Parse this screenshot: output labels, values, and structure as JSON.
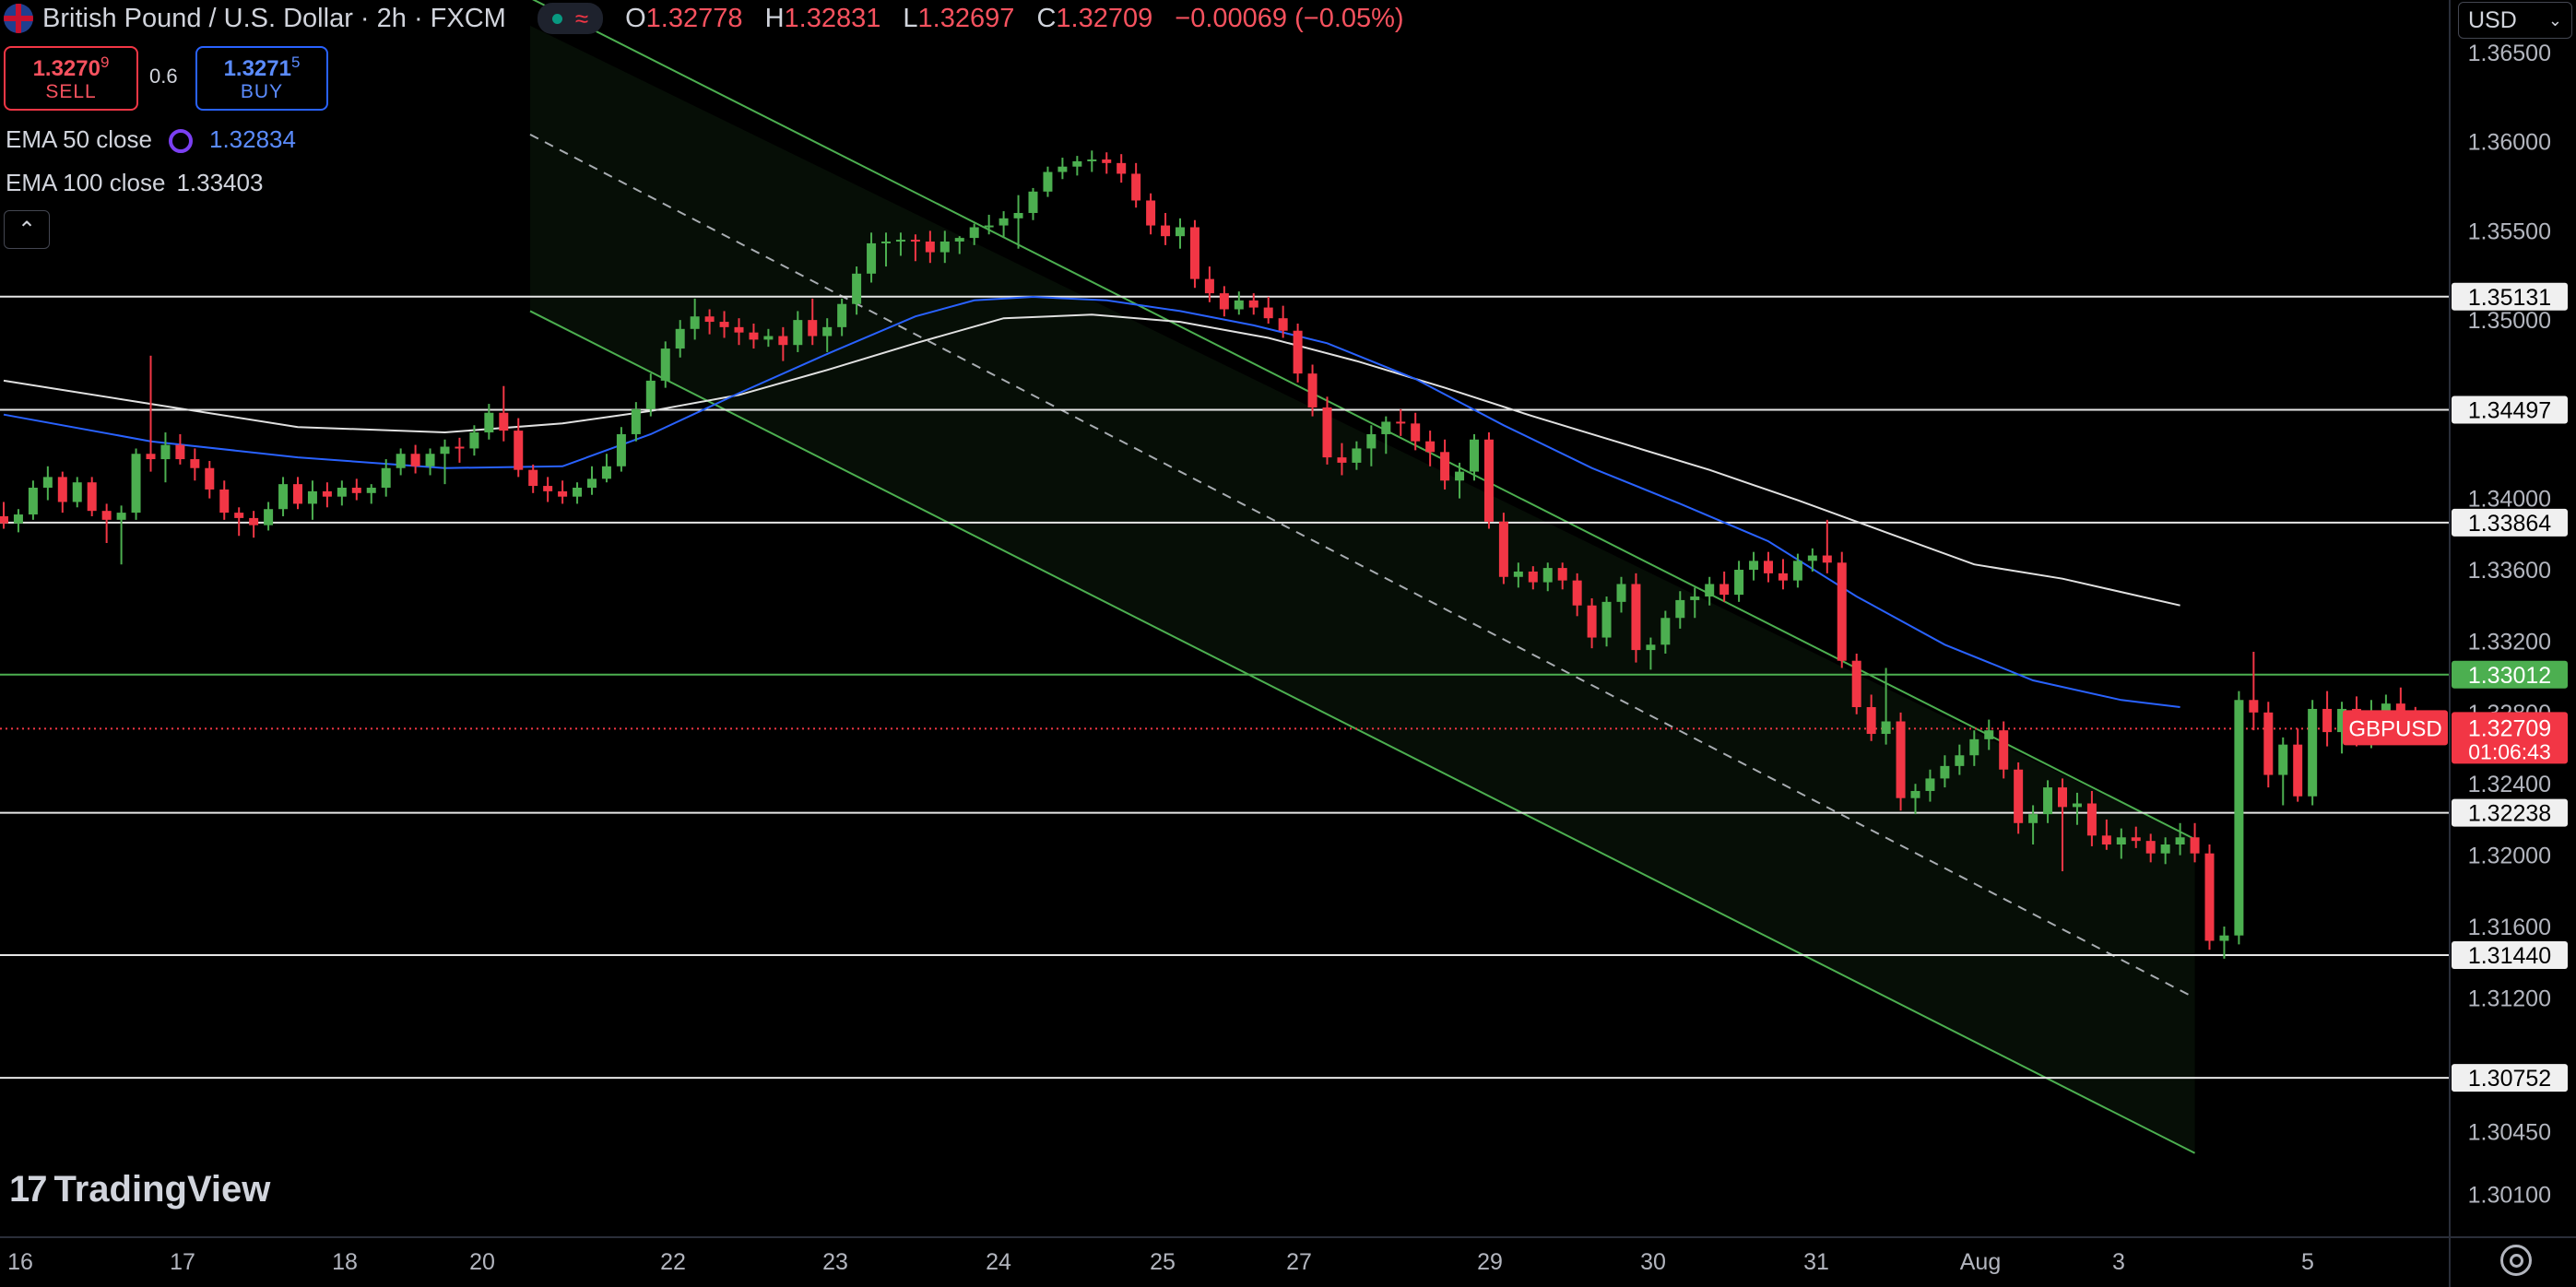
{
  "header": {
    "symbol_title": "British Pound / U.S. Dollar · 2h · FXCM",
    "ohlc": [
      {
        "key": "O",
        "value": "1.32778"
      },
      {
        "key": "H",
        "value": "1.32831"
      },
      {
        "key": "L",
        "value": "1.32697"
      },
      {
        "key": "C",
        "value": "1.32709"
      }
    ],
    "change": "−0.00069 (−0.05%)",
    "wave_icon": "≈"
  },
  "trade": {
    "sell_price_main": "1.3270",
    "sell_price_sup": "9",
    "sell_label": "SELL",
    "spread": "0.6",
    "buy_price_main": "1.3271",
    "buy_price_sup": "5",
    "buy_label": "BUY"
  },
  "indicators": {
    "ema50_label": "EMA 50 close",
    "ema50_value": "1.32834",
    "ema100_label": "EMA 100 close",
    "ema100_value": "1.33403"
  },
  "currency_selector": "USD",
  "brand": "TradingView",
  "colors": {
    "up": "#4caf50",
    "down": "#f23645",
    "ema50": "#2962ff",
    "ema100": "#e0e0e0",
    "channel": "#4caf50",
    "price_label_bg": "#f23645",
    "green_level_bg": "#4caf50"
  },
  "chart_data": {
    "type": "candlestick",
    "symbol_label": "GBPUSD",
    "current_price": "1.32709",
    "countdown": "01:06:43",
    "x_ticks": [
      "16",
      "17",
      "18",
      "20",
      "22",
      "23",
      "24",
      "25",
      "27",
      "29",
      "30",
      "31",
      "Aug",
      "3",
      "5"
    ],
    "y_ticks": [
      "1.36500",
      "1.36000",
      "1.35500",
      "1.35000",
      "1.34000",
      "1.33600",
      "1.33200",
      "1.32800",
      "1.32400",
      "1.32000",
      "1.31600",
      "1.31200",
      "1.30450",
      "1.30100"
    ],
    "y_range": [
      1.2985,
      1.367
    ],
    "horizontal_levels": [
      {
        "label": "1.35131",
        "value": 1.35131,
        "highlight": false
      },
      {
        "label": "1.34497",
        "value": 1.34497,
        "highlight": false
      },
      {
        "label": "1.33864",
        "value": 1.33864,
        "highlight": false
      },
      {
        "label": "1.33012",
        "value": 1.33012,
        "highlight": true
      },
      {
        "label": "1.32238",
        "value": 1.32238,
        "highlight": false
      },
      {
        "label": "1.31440",
        "value": 1.3144,
        "highlight": false
      },
      {
        "label": "1.30752",
        "value": 1.30752,
        "highlight": false
      }
    ],
    "channel": {
      "start_time": 35.8,
      "end_time": 149,
      "upper_start": 1.3665,
      "upper_end": 1.3209,
      "middle_start": 1.3604,
      "middle_end": 1.312,
      "lower_start": 1.3505,
      "lower_end": 1.3033
    },
    "candles": [
      [
        1.339,
        1.3398,
        1.3383,
        1.3386
      ],
      [
        1.3386,
        1.3394,
        1.3381,
        1.3391
      ],
      [
        1.3391,
        1.341,
        1.3388,
        1.3406
      ],
      [
        1.3406,
        1.3418,
        1.3399,
        1.3412
      ],
      [
        1.3412,
        1.3415,
        1.3392,
        1.3398
      ],
      [
        1.3398,
        1.3412,
        1.3395,
        1.3409
      ],
      [
        1.3409,
        1.3412,
        1.339,
        1.3393
      ],
      [
        1.3393,
        1.3397,
        1.3375,
        1.3388
      ],
      [
        1.3388,
        1.3396,
        1.3363,
        1.3392
      ],
      [
        1.3392,
        1.3428,
        1.3388,
        1.3425
      ],
      [
        1.3425,
        1.348,
        1.3415,
        1.3422
      ],
      [
        1.3422,
        1.3437,
        1.3409,
        1.343
      ],
      [
        1.343,
        1.3436,
        1.3419,
        1.3422
      ],
      [
        1.3422,
        1.3428,
        1.341,
        1.3417
      ],
      [
        1.3417,
        1.3421,
        1.34,
        1.3405
      ],
      [
        1.3405,
        1.341,
        1.3388,
        1.3392
      ],
      [
        1.3392,
        1.3395,
        1.3379,
        1.3389
      ],
      [
        1.3389,
        1.3393,
        1.3378,
        1.3385
      ],
      [
        1.3385,
        1.3398,
        1.3382,
        1.3394
      ],
      [
        1.3394,
        1.3412,
        1.339,
        1.3408
      ],
      [
        1.3408,
        1.3412,
        1.3394,
        1.3397
      ],
      [
        1.3397,
        1.341,
        1.3388,
        1.3404
      ],
      [
        1.3404,
        1.3409,
        1.3395,
        1.3401
      ],
      [
        1.3401,
        1.341,
        1.3396,
        1.3406
      ],
      [
        1.3406,
        1.3411,
        1.3399,
        1.3403
      ],
      [
        1.3403,
        1.3408,
        1.3397,
        1.3406
      ],
      [
        1.3406,
        1.3422,
        1.3401,
        1.3417
      ],
      [
        1.3417,
        1.3428,
        1.3413,
        1.3425
      ],
      [
        1.3425,
        1.343,
        1.3414,
        1.3418
      ],
      [
        1.3418,
        1.3428,
        1.3413,
        1.3425
      ],
      [
        1.3425,
        1.3433,
        1.3408,
        1.3429
      ],
      [
        1.3429,
        1.3434,
        1.342,
        1.3428
      ],
      [
        1.3428,
        1.3441,
        1.3424,
        1.3437
      ],
      [
        1.3437,
        1.3453,
        1.3433,
        1.3448
      ],
      [
        1.3448,
        1.3463,
        1.3432,
        1.3438
      ],
      [
        1.3438,
        1.3445,
        1.3412,
        1.3416
      ],
      [
        1.3416,
        1.3419,
        1.3403,
        1.3407
      ],
      [
        1.3407,
        1.3412,
        1.3398,
        1.3404
      ],
      [
        1.3404,
        1.341,
        1.3397,
        1.3401
      ],
      [
        1.3401,
        1.3409,
        1.3397,
        1.3406
      ],
      [
        1.3406,
        1.3418,
        1.3402,
        1.3411
      ],
      [
        1.3411,
        1.3425,
        1.3409,
        1.3418
      ],
      [
        1.3418,
        1.344,
        1.3415,
        1.3436
      ],
      [
        1.3436,
        1.3454,
        1.3432,
        1.345
      ],
      [
        1.345,
        1.347,
        1.3446,
        1.3466
      ],
      [
        1.3466,
        1.3488,
        1.3462,
        1.3484
      ],
      [
        1.3484,
        1.35,
        1.3479,
        1.3495
      ],
      [
        1.3495,
        1.3512,
        1.3489,
        1.3502
      ],
      [
        1.3502,
        1.3506,
        1.3492,
        1.3499
      ],
      [
        1.3499,
        1.3505,
        1.349,
        1.3496
      ],
      [
        1.3496,
        1.3501,
        1.3486,
        1.3493
      ],
      [
        1.3493,
        1.3498,
        1.3484,
        1.3489
      ],
      [
        1.3489,
        1.3495,
        1.3485,
        1.3491
      ],
      [
        1.3491,
        1.3496,
        1.3477,
        1.3486
      ],
      [
        1.3486,
        1.3505,
        1.3482,
        1.35
      ],
      [
        1.35,
        1.3512,
        1.3486,
        1.3491
      ],
      [
        1.3491,
        1.3501,
        1.3482,
        1.3496
      ],
      [
        1.3496,
        1.3512,
        1.3491,
        1.3509
      ],
      [
        1.3509,
        1.353,
        1.3503,
        1.3526
      ],
      [
        1.3526,
        1.3549,
        1.3521,
        1.3543
      ],
      [
        1.3543,
        1.3549,
        1.353,
        1.3544
      ],
      [
        1.3544,
        1.3549,
        1.3536,
        1.3545
      ],
      [
        1.3545,
        1.3548,
        1.3533,
        1.3544
      ],
      [
        1.3544,
        1.355,
        1.3532,
        1.3538
      ],
      [
        1.3538,
        1.355,
        1.3532,
        1.3544
      ],
      [
        1.3544,
        1.3547,
        1.3537,
        1.3546
      ],
      [
        1.3546,
        1.3554,
        1.3542,
        1.3552
      ],
      [
        1.3552,
        1.3559,
        1.3548,
        1.3553
      ],
      [
        1.3553,
        1.3561,
        1.3546,
        1.3557
      ],
      [
        1.3557,
        1.357,
        1.354,
        1.356
      ],
      [
        1.356,
        1.3574,
        1.3556,
        1.3572
      ],
      [
        1.3572,
        1.3586,
        1.3569,
        1.3583
      ],
      [
        1.3583,
        1.3591,
        1.3579,
        1.3586
      ],
      [
        1.3586,
        1.3592,
        1.3581,
        1.3589
      ],
      [
        1.3589,
        1.3595,
        1.3583,
        1.359
      ],
      [
        1.359,
        1.3594,
        1.3582,
        1.3588
      ],
      [
        1.3588,
        1.3593,
        1.3577,
        1.3582
      ],
      [
        1.3582,
        1.3588,
        1.3563,
        1.3567
      ],
      [
        1.3567,
        1.3571,
        1.3548,
        1.3553
      ],
      [
        1.3553,
        1.356,
        1.3542,
        1.3547
      ],
      [
        1.3547,
        1.3557,
        1.354,
        1.3552
      ],
      [
        1.3552,
        1.3556,
        1.3518,
        1.3523
      ],
      [
        1.3523,
        1.353,
        1.351,
        1.3515
      ],
      [
        1.3515,
        1.3519,
        1.3502,
        1.3506
      ],
      [
        1.3506,
        1.3516,
        1.3503,
        1.3511
      ],
      [
        1.3511,
        1.3515,
        1.3503,
        1.3507
      ],
      [
        1.3507,
        1.3513,
        1.3498,
        1.3501
      ],
      [
        1.3501,
        1.3508,
        1.349,
        1.3494
      ],
      [
        1.3494,
        1.3498,
        1.3465,
        1.347
      ],
      [
        1.347,
        1.3475,
        1.3446,
        1.3451
      ],
      [
        1.3451,
        1.3457,
        1.3419,
        1.3423
      ],
      [
        1.3423,
        1.3431,
        1.3413,
        1.342
      ],
      [
        1.342,
        1.3432,
        1.3416,
        1.3428
      ],
      [
        1.3428,
        1.3441,
        1.3418,
        1.3436
      ],
      [
        1.3436,
        1.3446,
        1.3425,
        1.3443
      ],
      [
        1.3443,
        1.345,
        1.3435,
        1.3442
      ],
      [
        1.3442,
        1.3448,
        1.3427,
        1.3432
      ],
      [
        1.3432,
        1.3438,
        1.3418,
        1.3426
      ],
      [
        1.3426,
        1.3433,
        1.3405,
        1.341
      ],
      [
        1.341,
        1.342,
        1.34,
        1.3415
      ],
      [
        1.3415,
        1.3436,
        1.341,
        1.3433
      ],
      [
        1.3433,
        1.3437,
        1.3383,
        1.3387
      ],
      [
        1.3387,
        1.3392,
        1.3352,
        1.3356
      ],
      [
        1.3356,
        1.3364,
        1.335,
        1.3359
      ],
      [
        1.3359,
        1.3362,
        1.3349,
        1.3353
      ],
      [
        1.3353,
        1.3364,
        1.3348,
        1.3361
      ],
      [
        1.3361,
        1.3364,
        1.3349,
        1.3354
      ],
      [
        1.3354,
        1.3358,
        1.3334,
        1.334
      ],
      [
        1.334,
        1.3344,
        1.3316,
        1.3322
      ],
      [
        1.3322,
        1.3345,
        1.3317,
        1.3342
      ],
      [
        1.3342,
        1.3356,
        1.3336,
        1.3352
      ],
      [
        1.3352,
        1.3358,
        1.3308,
        1.3315
      ],
      [
        1.3315,
        1.3322,
        1.3304,
        1.3318
      ],
      [
        1.3318,
        1.3337,
        1.3313,
        1.3333
      ],
      [
        1.3333,
        1.3348,
        1.3327,
        1.3343
      ],
      [
        1.3343,
        1.335,
        1.3333,
        1.3345
      ],
      [
        1.3345,
        1.3356,
        1.334,
        1.3352
      ],
      [
        1.3352,
        1.3359,
        1.3342,
        1.3346
      ],
      [
        1.3346,
        1.3365,
        1.3342,
        1.336
      ],
      [
        1.336,
        1.337,
        1.3354,
        1.3365
      ],
      [
        1.3365,
        1.337,
        1.3353,
        1.3358
      ],
      [
        1.3358,
        1.3366,
        1.3349,
        1.3354
      ],
      [
        1.3354,
        1.3369,
        1.335,
        1.3365
      ],
      [
        1.3365,
        1.3372,
        1.3359,
        1.3368
      ],
      [
        1.3368,
        1.3388,
        1.3358,
        1.3364
      ],
      [
        1.3364,
        1.337,
        1.3305,
        1.3309
      ],
      [
        1.3309,
        1.3313,
        1.3279,
        1.3283
      ],
      [
        1.3283,
        1.329,
        1.3264,
        1.3268
      ],
      [
        1.3268,
        1.3305,
        1.3262,
        1.3275
      ],
      [
        1.3275,
        1.328,
        1.3225,
        1.3232
      ],
      [
        1.3232,
        1.324,
        1.3223,
        1.3236
      ],
      [
        1.3236,
        1.3248,
        1.323,
        1.3243
      ],
      [
        1.3243,
        1.3256,
        1.3238,
        1.325
      ],
      [
        1.325,
        1.3262,
        1.3245,
        1.3256
      ],
      [
        1.3256,
        1.327,
        1.325,
        1.3265
      ],
      [
        1.3265,
        1.3276,
        1.3259,
        1.327
      ],
      [
        1.327,
        1.3275,
        1.3243,
        1.3248
      ],
      [
        1.3248,
        1.3252,
        1.3212,
        1.3218
      ],
      [
        1.3218,
        1.3228,
        1.3206,
        1.3223
      ],
      [
        1.3223,
        1.3242,
        1.3218,
        1.3238
      ],
      [
        1.3238,
        1.3243,
        1.3191,
        1.3227
      ],
      [
        1.3227,
        1.3235,
        1.3217,
        1.3229
      ],
      [
        1.3229,
        1.3236,
        1.3205,
        1.3211
      ],
      [
        1.3211,
        1.322,
        1.3203,
        1.3206
      ],
      [
        1.3206,
        1.3215,
        1.3198,
        1.321
      ],
      [
        1.321,
        1.3216,
        1.3204,
        1.3208
      ],
      [
        1.3208,
        1.3212,
        1.3196,
        1.3201
      ],
      [
        1.3201,
        1.321,
        1.3195,
        1.3206
      ],
      [
        1.3206,
        1.3218,
        1.32,
        1.321
      ],
      [
        1.321,
        1.3218,
        1.3196,
        1.3201
      ],
      [
        1.3201,
        1.3206,
        1.3147,
        1.3152
      ],
      [
        1.3152,
        1.316,
        1.3142,
        1.3155
      ],
      [
        1.3155,
        1.3292,
        1.315,
        1.3287
      ],
      [
        1.3287,
        1.3314,
        1.327,
        1.328
      ],
      [
        1.328,
        1.3286,
        1.3238,
        1.3245
      ],
      [
        1.3245,
        1.3266,
        1.3228,
        1.3262
      ],
      [
        1.3262,
        1.3271,
        1.323,
        1.3233
      ],
      [
        1.3233,
        1.3287,
        1.3228,
        1.3282
      ],
      [
        1.3282,
        1.3292,
        1.3261,
        1.3269
      ],
      [
        1.3269,
        1.3286,
        1.3257,
        1.3282
      ],
      [
        1.3282,
        1.3289,
        1.3261,
        1.3265
      ],
      [
        1.3265,
        1.3287,
        1.326,
        1.328
      ],
      [
        1.328,
        1.329,
        1.3271,
        1.3285
      ],
      [
        1.3285,
        1.3294,
        1.3277,
        1.3278
      ],
      [
        1.32778,
        1.32831,
        1.32697,
        1.32709
      ]
    ],
    "ema50": [
      [
        0,
        1.3447
      ],
      [
        10,
        1.3432
      ],
      [
        20,
        1.3423
      ],
      [
        30,
        1.3417
      ],
      [
        38,
        1.3418
      ],
      [
        44,
        1.3436
      ],
      [
        50,
        1.3459
      ],
      [
        56,
        1.3481
      ],
      [
        62,
        1.3502
      ],
      [
        66,
        1.3511
      ],
      [
        70,
        1.3513
      ],
      [
        75,
        1.3511
      ],
      [
        80,
        1.3505
      ],
      [
        85,
        1.3497
      ],
      [
        90,
        1.3487
      ],
      [
        96,
        1.3467
      ],
      [
        102,
        1.3441
      ],
      [
        108,
        1.3417
      ],
      [
        114,
        1.3397
      ],
      [
        120,
        1.3376
      ],
      [
        126,
        1.3345
      ],
      [
        132,
        1.3318
      ],
      [
        138,
        1.3298
      ],
      [
        144,
        1.3287
      ],
      [
        148,
        1.3283
      ]
    ],
    "ema100": [
      [
        0,
        1.3466
      ],
      [
        10,
        1.3453
      ],
      [
        20,
        1.344
      ],
      [
        30,
        1.3437
      ],
      [
        38,
        1.3442
      ],
      [
        44,
        1.3449
      ],
      [
        50,
        1.3458
      ],
      [
        56,
        1.3472
      ],
      [
        62,
        1.3487
      ],
      [
        68,
        1.3501
      ],
      [
        74,
        1.3503
      ],
      [
        80,
        1.3499
      ],
      [
        86,
        1.349
      ],
      [
        92,
        1.3477
      ],
      [
        98,
        1.3462
      ],
      [
        104,
        1.3446
      ],
      [
        110,
        1.3431
      ],
      [
        116,
        1.3416
      ],
      [
        122,
        1.3399
      ],
      [
        128,
        1.3381
      ],
      [
        134,
        1.3363
      ],
      [
        140,
        1.3355
      ],
      [
        148,
        1.334
      ]
    ]
  }
}
